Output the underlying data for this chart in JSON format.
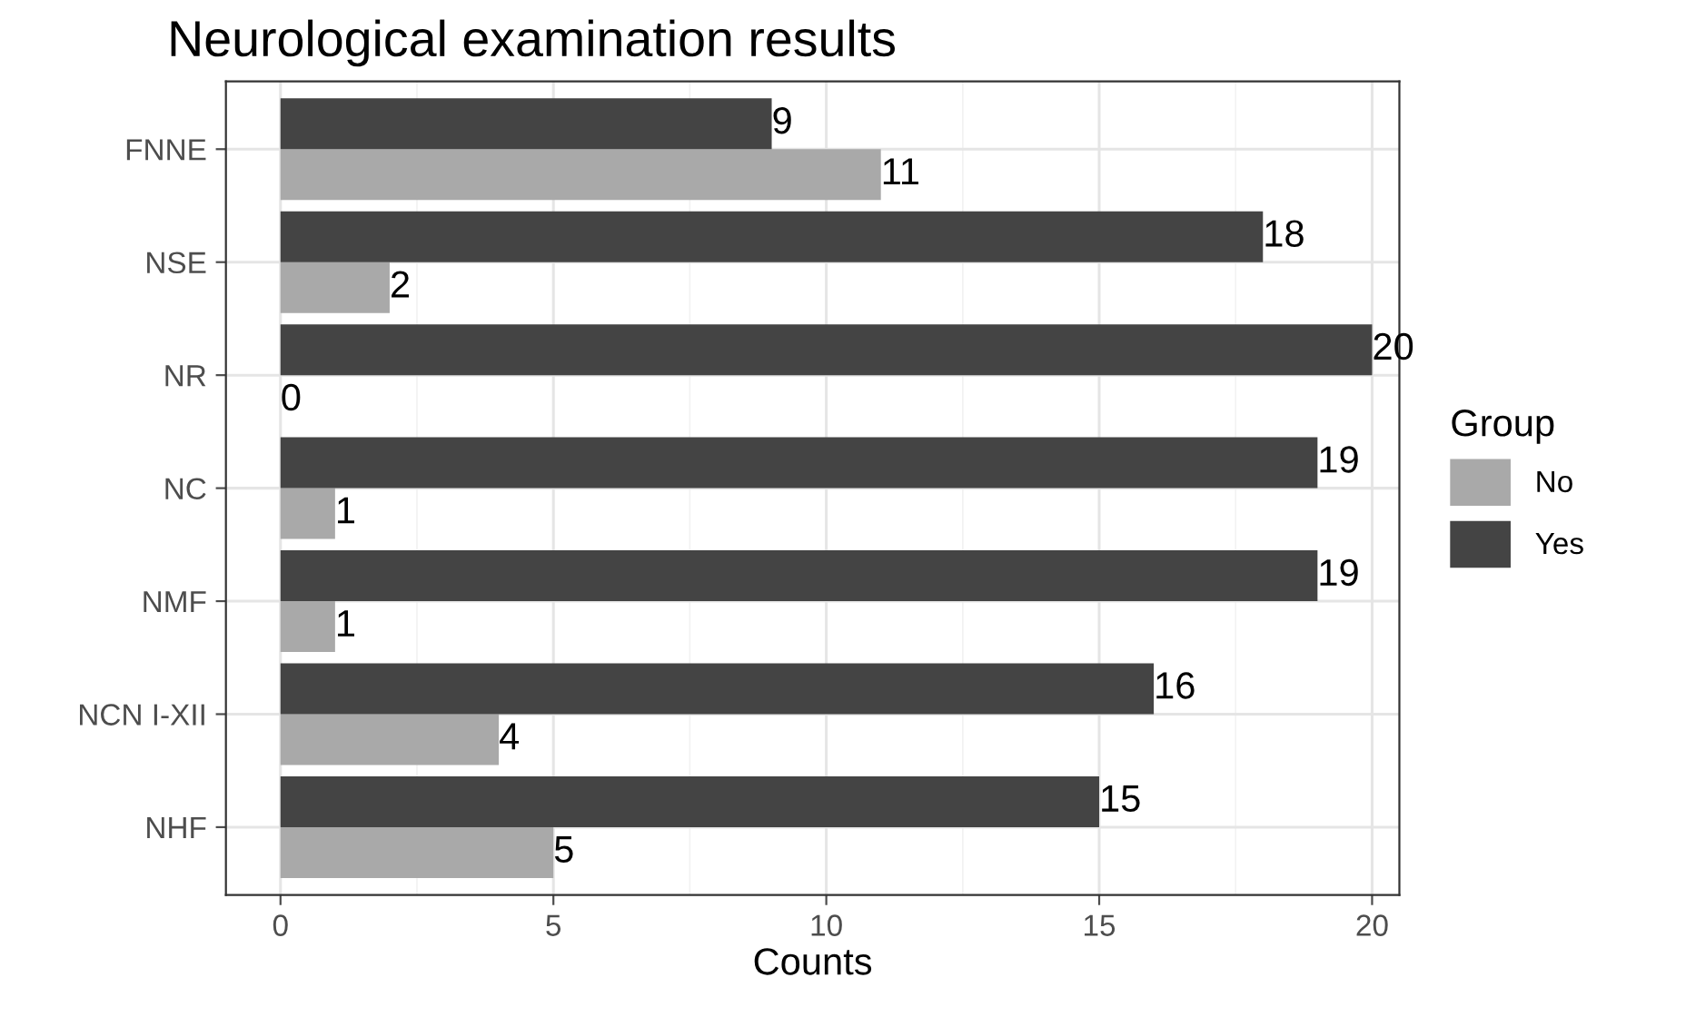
{
  "chart_data": {
    "type": "bar",
    "orientation": "horizontal",
    "title": "Neurological examination results",
    "xlabel": "Counts",
    "legend_title": "Group",
    "categories": [
      "FNNE",
      "NSE",
      "NR",
      "NC",
      "NMF",
      "NCN I-XII",
      "NHF"
    ],
    "series": [
      {
        "name": "No",
        "color": "#a9a9a9",
        "values": [
          11,
          2,
          0,
          1,
          1,
          4,
          5
        ]
      },
      {
        "name": "Yes",
        "color": "#444444",
        "values": [
          9,
          18,
          20,
          19,
          19,
          16,
          15
        ]
      }
    ],
    "xlim": [
      -1,
      20.5
    ],
    "xticks": [
      0,
      5,
      10,
      15,
      20
    ],
    "grid": true,
    "legend": "right",
    "data_labels": true
  }
}
